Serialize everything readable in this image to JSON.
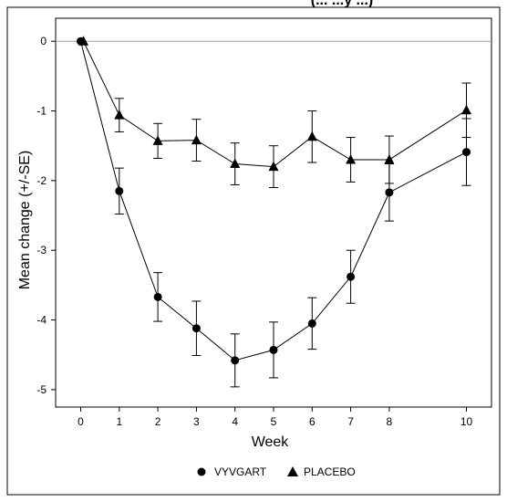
{
  "chart_data": {
    "type": "line",
    "title_fragment": "(... ...y ...)",
    "xlabel": "Week",
    "ylabel": "Mean change (+/-SE)",
    "x_ticks": [
      0,
      1,
      2,
      3,
      4,
      5,
      6,
      7,
      8,
      10
    ],
    "y_ticks": [
      0,
      -1,
      -2,
      -3,
      -4,
      -5
    ],
    "xlim": [
      -0.65,
      10.65
    ],
    "ylim": [
      -5.25,
      0.33
    ],
    "reference_line": 0,
    "legend_position": "bottom-center",
    "series": [
      {
        "name": "VYVGART",
        "marker": "circle",
        "color": "#000000",
        "x": [
          0,
          1,
          2,
          3,
          4,
          5,
          6,
          7,
          8,
          10
        ],
        "y": [
          0,
          -2.15,
          -3.67,
          -4.12,
          -4.58,
          -4.43,
          -4.05,
          -3.38,
          -2.17,
          -1.59
        ],
        "se": [
          0,
          0.33,
          0.35,
          0.39,
          0.38,
          0.4,
          0.37,
          0.38,
          0.41,
          0.48
        ]
      },
      {
        "name": "PLACEBO",
        "marker": "triangle",
        "color": "#000000",
        "x": [
          0,
          1,
          2,
          3,
          4,
          5,
          6,
          7,
          8,
          10
        ],
        "y": [
          0,
          -1.06,
          -1.43,
          -1.42,
          -1.76,
          -1.8,
          -1.37,
          -1.7,
          -1.7,
          -0.99
        ],
        "se": [
          0,
          0.24,
          0.25,
          0.3,
          0.3,
          0.3,
          0.37,
          0.32,
          0.34,
          0.39
        ]
      }
    ]
  }
}
